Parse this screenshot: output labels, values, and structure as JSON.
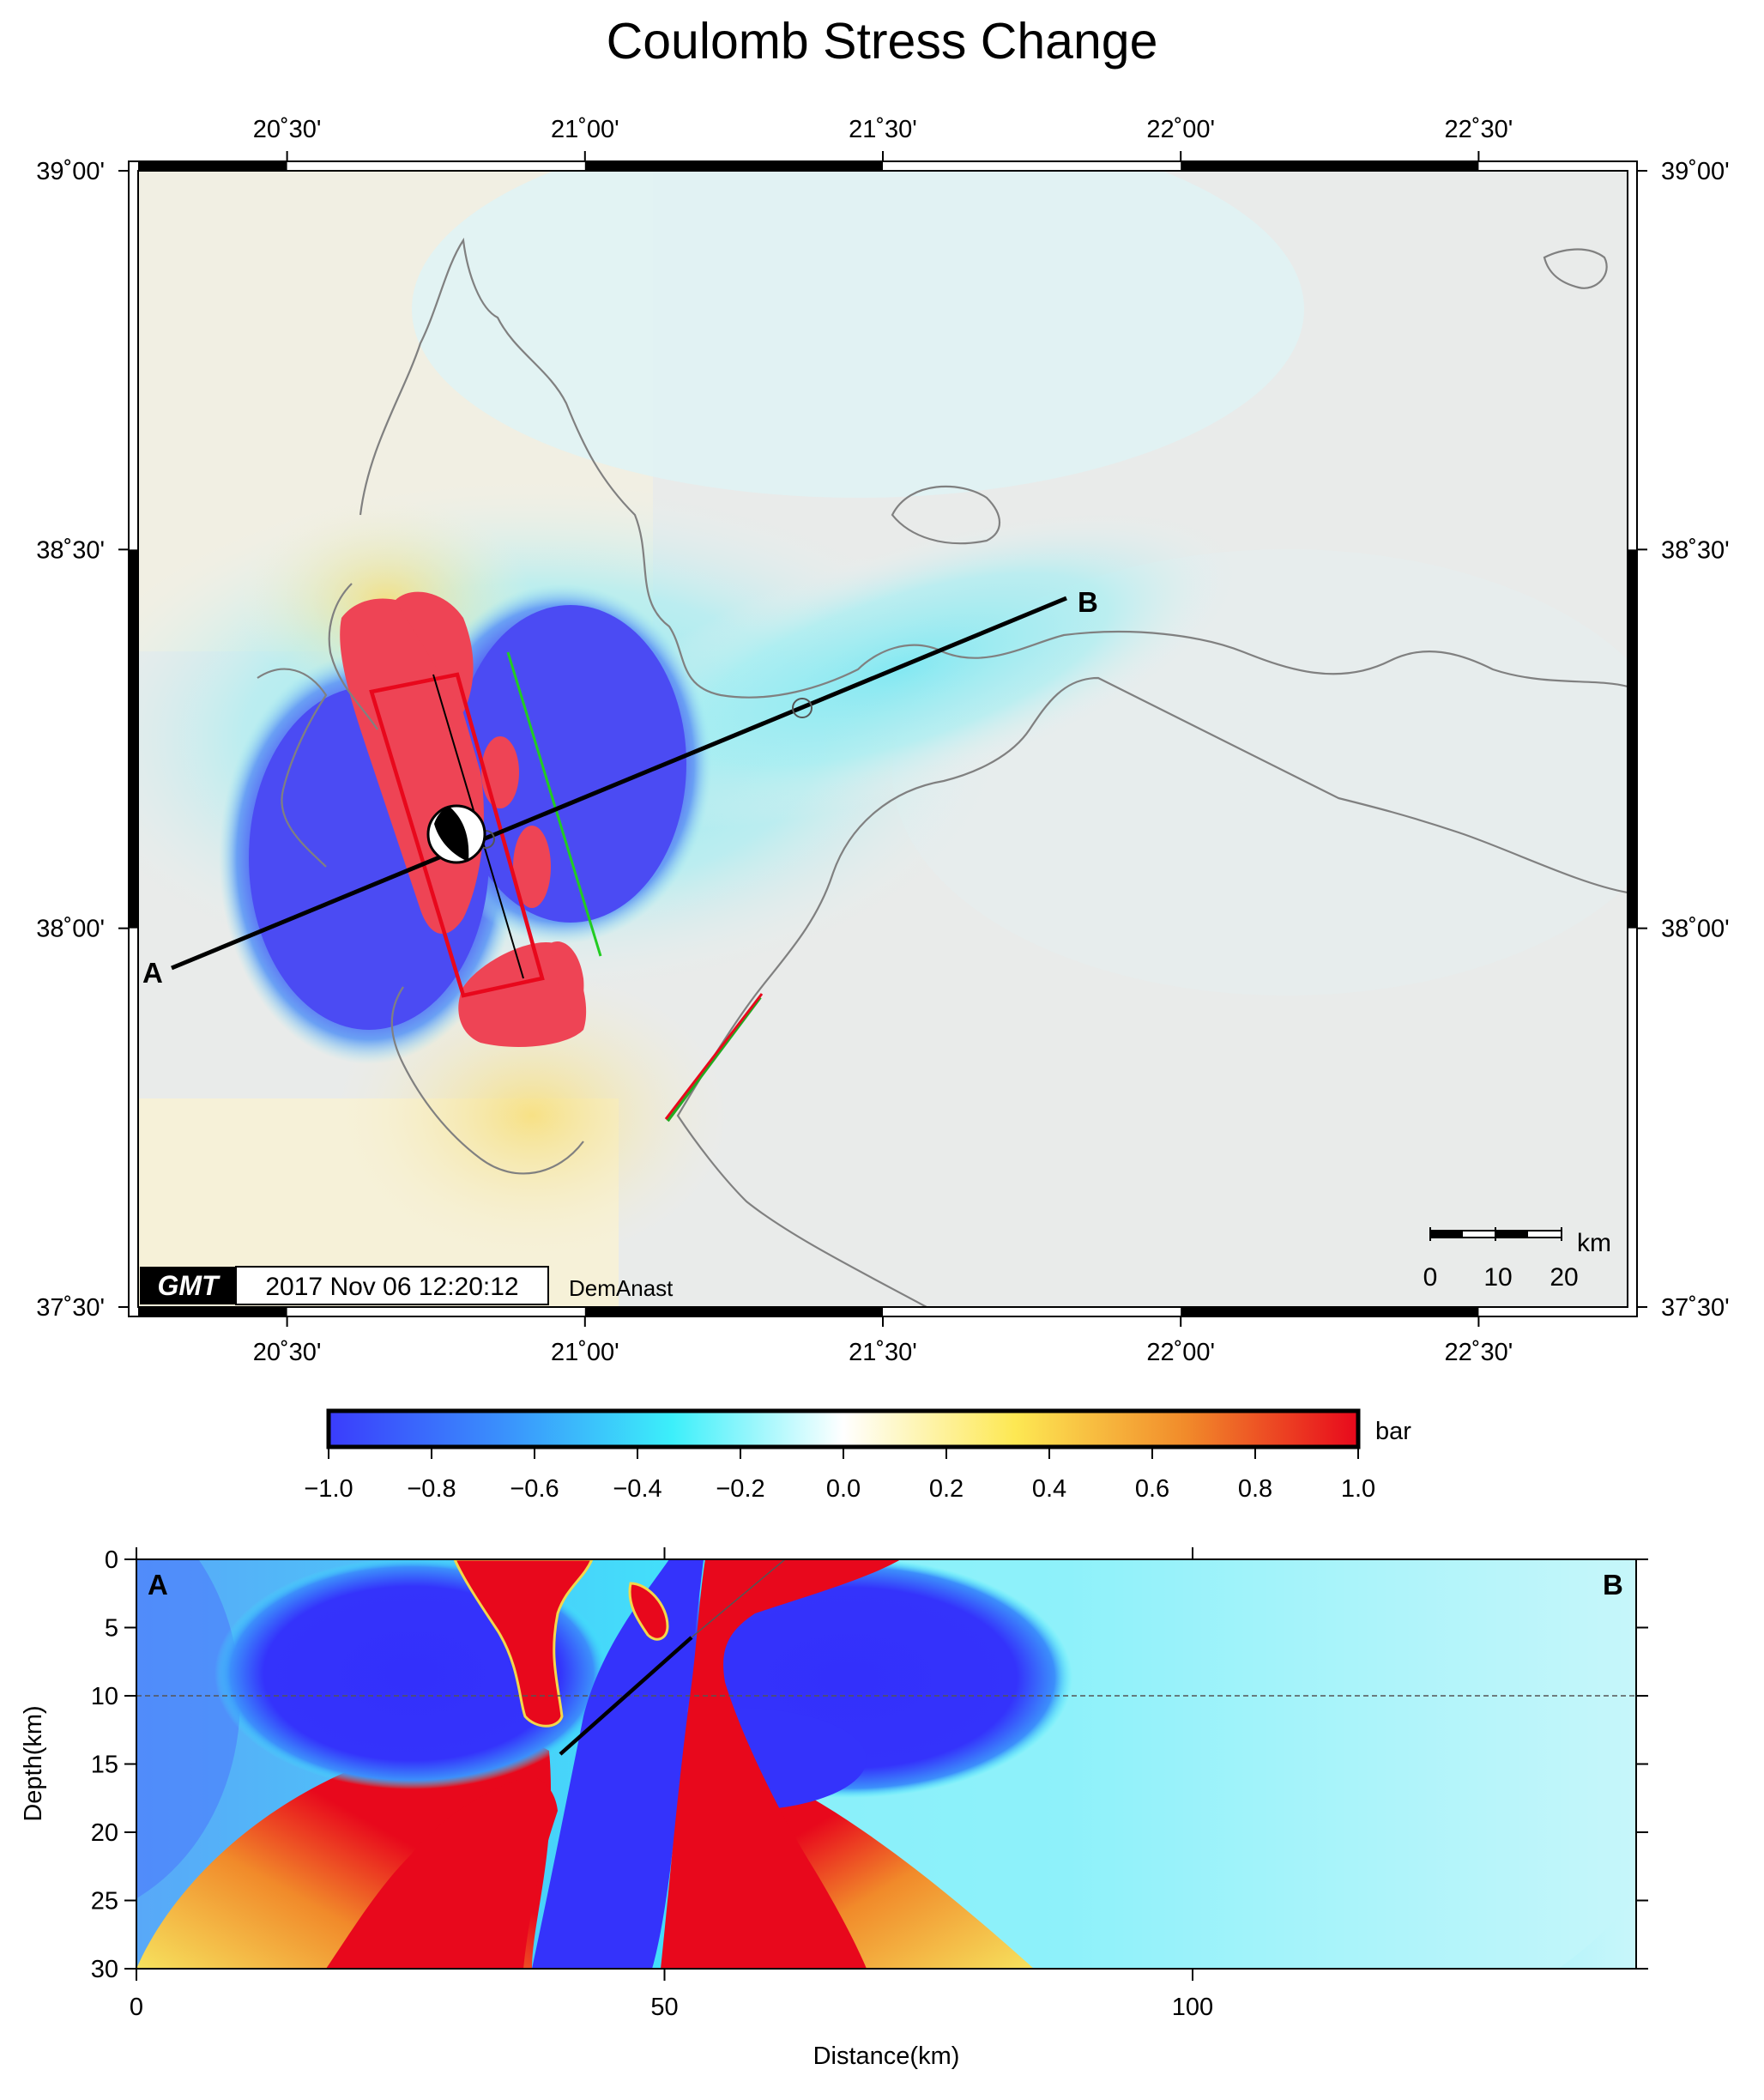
{
  "chart_data": [
    {
      "type": "heatmap",
      "title": "Coulomb Stress Change",
      "xlabel": "",
      "ylabel": "",
      "x_ticks": [
        "20˚30'",
        "21˚00'",
        "21˚30'",
        "22˚00'",
        "22˚30'"
      ],
      "y_ticks": [
        "39˚00'",
        "38˚30'",
        "38˚00'",
        "37˚30'"
      ],
      "xlim_deg": [
        20.25,
        22.75
      ],
      "ylim_deg": [
        37.5,
        39.0
      ],
      "profile": {
        "start_label": "A",
        "end_label": "B",
        "start": {
          "lon": 20.32,
          "lat": 37.95
        },
        "end": {
          "lon": 21.79,
          "lat": 38.44
        }
      },
      "fault_plane_corners": [
        {
          "lon": 20.58,
          "lat": 38.31
        },
        {
          "lon": 20.75,
          "lat": 38.34
        },
        {
          "lon": 20.91,
          "lat": 37.97
        },
        {
          "lon": 20.74,
          "lat": 37.94
        }
      ],
      "epicenter": {
        "lon": 20.78,
        "lat": 38.13
      },
      "receiver_fault_green": {
        "start": {
          "lon": 20.87,
          "lat": 38.36
        },
        "end": {
          "lon": 20.98,
          "lat": 38.0
        }
      },
      "receiver_fault_red": {
        "start": {
          "lon": 21.09,
          "lat": 37.78
        },
        "end": {
          "lon": 21.25,
          "lat": 37.96
        }
      },
      "scale_bar": {
        "unit": "km",
        "labels": [
          "0",
          "10",
          "20"
        ]
      },
      "timestamp": "2017 Nov 06 12:20:12",
      "credit": "DemAnast",
      "logo": "GMT",
      "grid": false
    },
    {
      "type": "colorbar",
      "unit": "bar",
      "ticks": [
        "−1.0",
        "−0.8",
        "−0.6",
        "−0.4",
        "−0.2",
        "0.0",
        "0.2",
        "0.4",
        "0.6",
        "0.8",
        "1.0"
      ],
      "range": [
        -1.0,
        1.0
      ],
      "colors": [
        "#3a3cfc",
        "#3a8ffc",
        "#3ceffa",
        "#ffffff",
        "#fde853",
        "#f18a2a",
        "#e8081c"
      ]
    },
    {
      "type": "heatmap",
      "xlabel": "Distance(km)",
      "ylabel": "Depth(km)",
      "x_ticks": [
        "0",
        "50",
        "100"
      ],
      "y_ticks": [
        "0",
        "5",
        "10",
        "15",
        "20",
        "25",
        "30"
      ],
      "xlim": [
        0,
        142
      ],
      "ylim": [
        30,
        0
      ],
      "start_label": "A",
      "end_label": "B",
      "reference_depth_km": 10,
      "fault_trace": {
        "start": {
          "distance": 40.5,
          "depth": 14.3
        },
        "end": {
          "distance": 53.5,
          "depth": 5.7
        }
      },
      "fault_extension_surface": {
        "distance": 61.5,
        "depth": 0
      }
    }
  ],
  "colors": {
    "negative": "#3a3cfc",
    "positive": "#e8081c",
    "neutral": "#ffffff",
    "land": "#e6e6e6",
    "coast": "#808080",
    "fault_red": "#e8081c",
    "fault_green": "#22cc22"
  }
}
